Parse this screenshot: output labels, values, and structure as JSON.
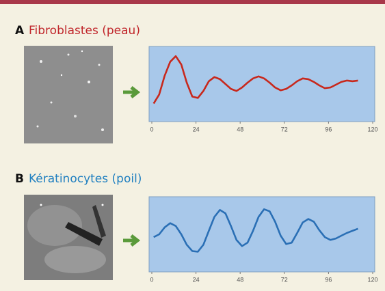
{
  "chart_data": [
    {
      "type": "line",
      "label": "A",
      "title": "Fibroblastes (peau)",
      "title_color": "#c0252a",
      "color": "#c8281c",
      "x": [
        1,
        4,
        7,
        10,
        13,
        16,
        19,
        22,
        25,
        28,
        31,
        34,
        37,
        40,
        43,
        46,
        49,
        52,
        55,
        58,
        61,
        64,
        67,
        70,
        73,
        76,
        79,
        82,
        85,
        88,
        91,
        94,
        97,
        100,
        103,
        106,
        109,
        112
      ],
      "values": [
        22,
        35,
        62,
        82,
        90,
        78,
        52,
        32,
        30,
        40,
        54,
        60,
        57,
        50,
        43,
        40,
        45,
        52,
        58,
        61,
        58,
        52,
        45,
        41,
        43,
        48,
        54,
        58,
        57,
        53,
        48,
        44,
        45,
        49,
        53,
        55,
        54,
        55
      ],
      "xlim": [
        0,
        120
      ],
      "xticks": [
        0,
        24,
        48,
        72,
        96,
        120
      ],
      "ylim": [
        0,
        100
      ]
    },
    {
      "type": "line",
      "label": "B",
      "title": "Kératinocytes (poil)",
      "title_color": "#1f7fc0",
      "color": "#2a6fb5",
      "x": [
        1,
        4,
        7,
        10,
        13,
        16,
        19,
        22,
        25,
        28,
        31,
        34,
        37,
        40,
        43,
        46,
        49,
        52,
        55,
        58,
        61,
        64,
        67,
        70,
        73,
        76,
        79,
        82,
        85,
        88,
        91,
        94,
        97,
        100,
        103,
        106,
        109,
        112
      ],
      "values": [
        46,
        50,
        60,
        66,
        62,
        50,
        35,
        26,
        25,
        35,
        55,
        75,
        85,
        80,
        62,
        42,
        33,
        38,
        55,
        75,
        86,
        83,
        68,
        48,
        36,
        38,
        52,
        67,
        72,
        68,
        56,
        46,
        42,
        44,
        48,
        52,
        55,
        58
      ],
      "xlim": [
        0,
        120
      ],
      "xticks": [
        0,
        24,
        48,
        72,
        96,
        120
      ],
      "ylim": [
        0,
        100
      ]
    }
  ]
}
